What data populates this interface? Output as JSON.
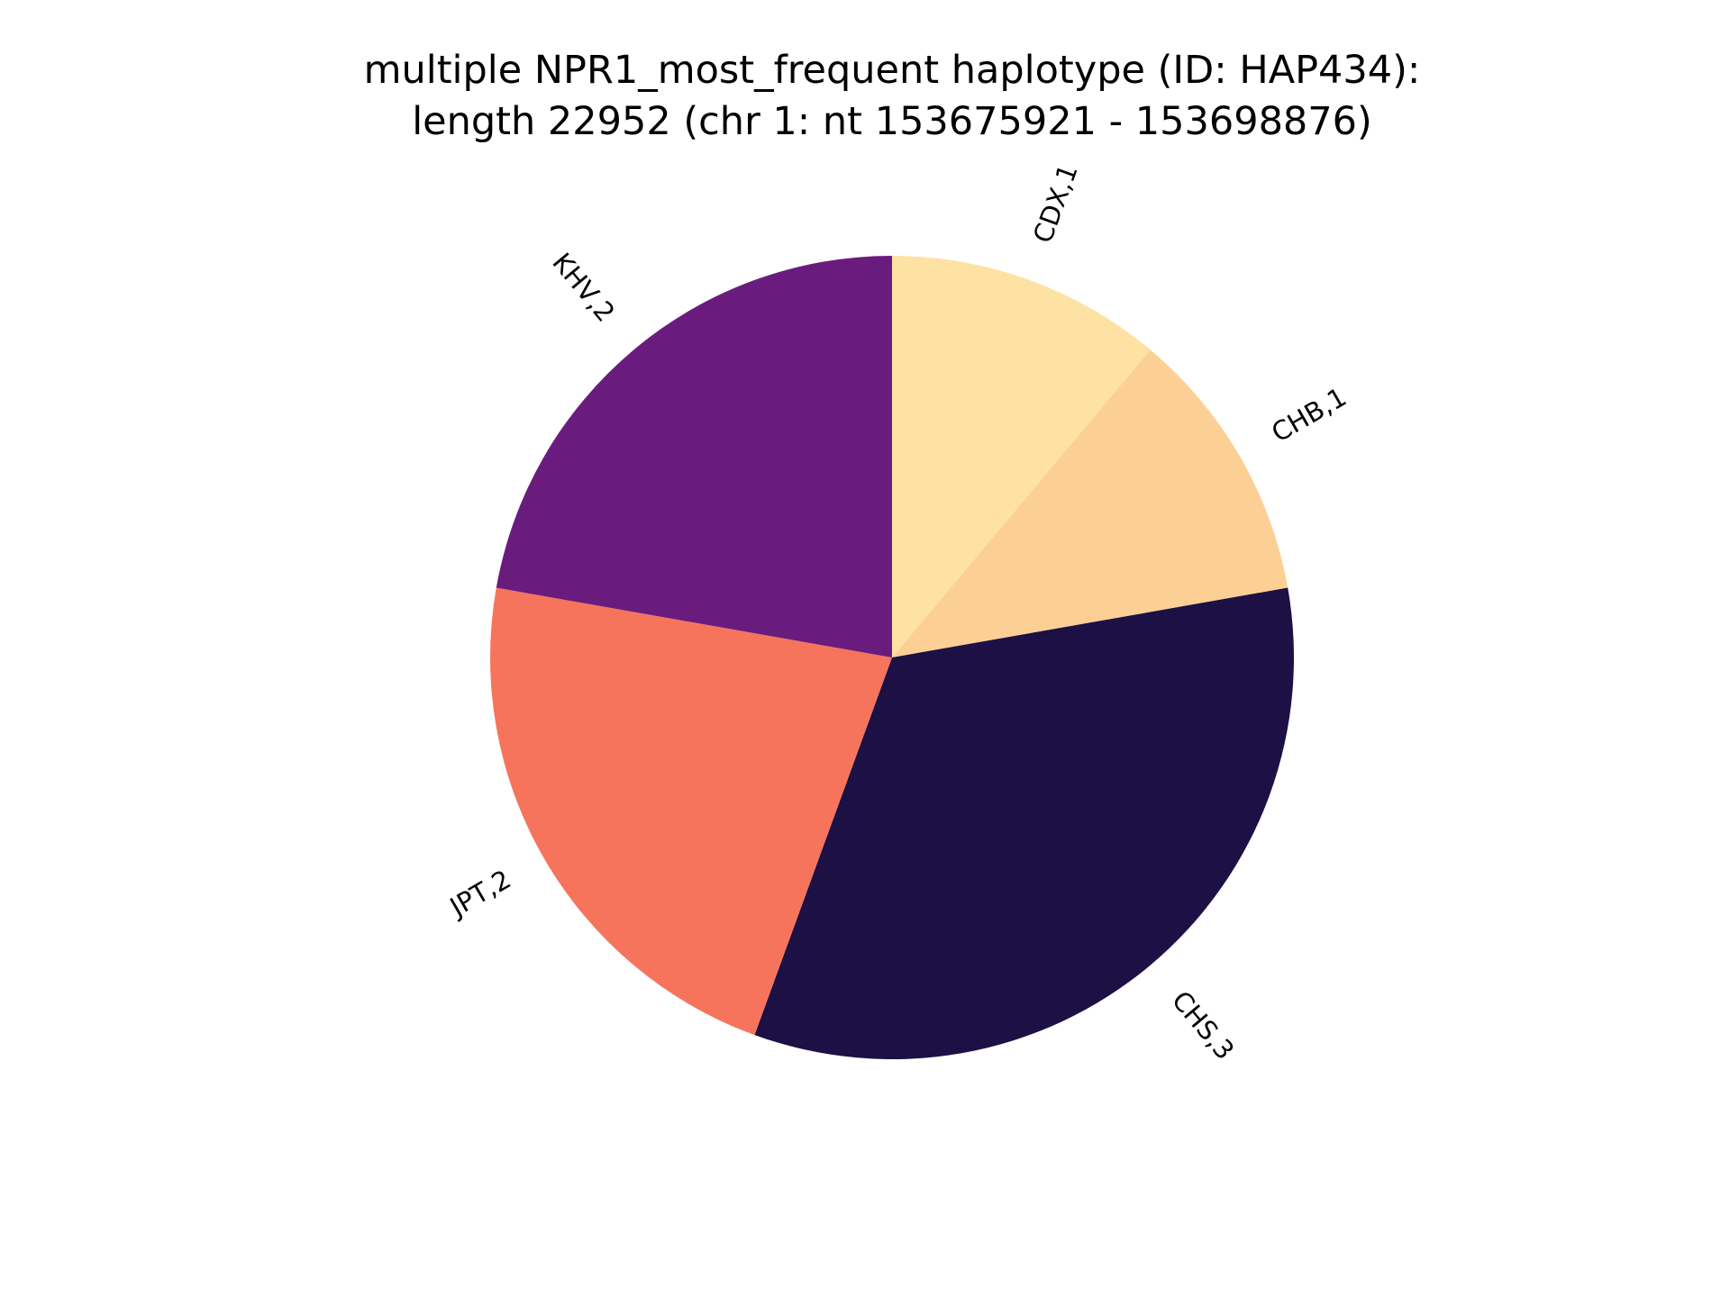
{
  "chart_data": {
    "type": "pie",
    "title_lines": [
      "multiple NPR1_most_frequent haplotype (ID: HAP434):",
      "length 22952 (chr 1: nt 153675921 - 153698876)"
    ],
    "start_angle_deg": 90,
    "direction": "clockwise",
    "slices": [
      {
        "label": "CDX,1",
        "value": 1,
        "color": "#fde2a3"
      },
      {
        "label": "CHB,1",
        "value": 1,
        "color": "#fcd095"
      },
      {
        "label": "CHS,3",
        "value": 3,
        "color": "#1c1044"
      },
      {
        "label": "JPT,2",
        "value": 2,
        "color": "#f6745c"
      },
      {
        "label": "KHV,2",
        "value": 2,
        "color": "#6a1c7e"
      }
    ]
  }
}
